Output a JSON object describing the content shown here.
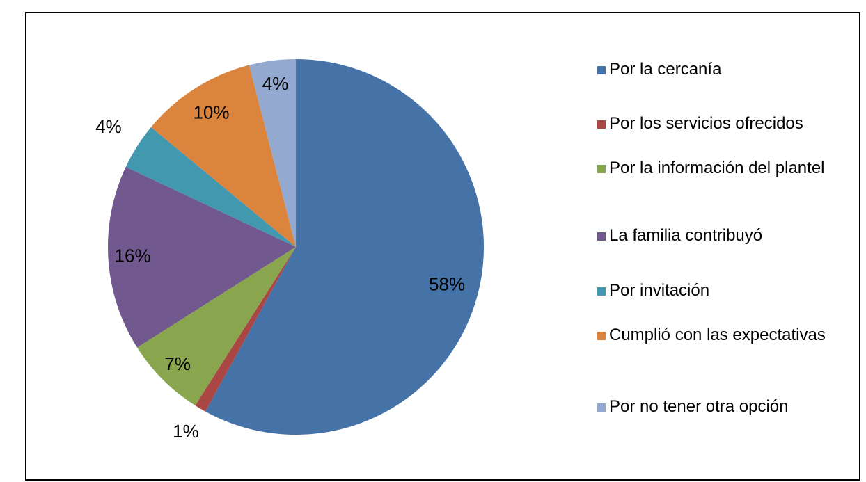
{
  "chart_data": {
    "type": "pie",
    "categories": [
      "Por la cercanía",
      "Por los servicios ofrecidos",
      "Por la información del plantel",
      "La familia contribuyó",
      "Por invitación",
      "Cumplió con las expectativas",
      "Por no tener otra opción"
    ],
    "values": [
      58,
      1,
      7,
      16,
      4,
      10,
      4
    ],
    "value_labels": [
      "58%",
      "1%",
      "7%",
      "16%",
      "4%",
      "10%",
      "4%"
    ],
    "colors": [
      "#4572a7",
      "#aa4643",
      "#89a54e",
      "#71588f",
      "#4198af",
      "#db843d",
      "#93a9cf"
    ],
    "legend": "right"
  }
}
